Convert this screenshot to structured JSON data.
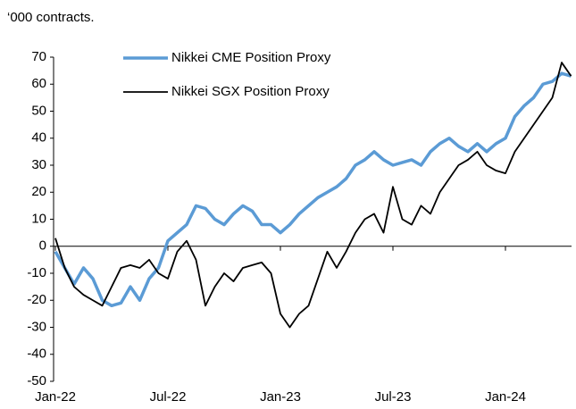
{
  "chart_data": {
    "type": "line",
    "subtitle": "‘000 contracts.",
    "categories": [
      "Jan-22",
      null,
      null,
      null,
      null,
      null,
      null,
      null,
      null,
      null,
      null,
      null,
      "Jul-22",
      null,
      null,
      null,
      null,
      null,
      null,
      null,
      null,
      null,
      null,
      null,
      "Jan-23",
      null,
      null,
      null,
      null,
      null,
      null,
      null,
      null,
      null,
      null,
      null,
      "Jul-23",
      null,
      null,
      null,
      null,
      null,
      null,
      null,
      null,
      null,
      null,
      null,
      "Jan-24",
      null,
      null,
      null,
      null,
      null,
      null,
      null
    ],
    "series": [
      {
        "name": "Nikkei CME Position Proxy",
        "color": "#5b9bd5",
        "values": [
          -2,
          -8,
          -14,
          -8,
          -12,
          -20,
          -22,
          -21,
          -15,
          -20,
          -12,
          -8,
          2,
          5,
          8,
          15,
          14,
          10,
          8,
          12,
          15,
          13,
          8,
          8,
          5,
          8,
          12,
          15,
          18,
          20,
          22,
          25,
          30,
          32,
          35,
          32,
          30,
          31,
          32,
          30,
          35,
          38,
          40,
          37,
          35,
          38,
          35,
          38,
          40,
          48,
          52,
          55,
          60,
          61,
          64,
          63
        ]
      },
      {
        "name": "Nikkei SGX Position Proxy",
        "color": "#000000",
        "values": [
          3,
          -8,
          -15,
          -18,
          -20,
          -22,
          -15,
          -8,
          -7,
          -8,
          -5,
          -10,
          -12,
          -2,
          2,
          -5,
          -22,
          -15,
          -10,
          -13,
          -8,
          -7,
          -6,
          -10,
          -25,
          -30,
          -25,
          -22,
          -12,
          -2,
          -8,
          -2,
          5,
          10,
          12,
          5,
          22,
          10,
          8,
          15,
          12,
          20,
          25,
          30,
          32,
          35,
          30,
          28,
          27,
          35,
          40,
          45,
          50,
          55,
          68,
          63
        ]
      }
    ],
    "ylim": [
      -50,
      70
    ],
    "yticks": [
      -50,
      -40,
      -30,
      -20,
      -10,
      0,
      10,
      20,
      30,
      40,
      50,
      60,
      70
    ]
  }
}
